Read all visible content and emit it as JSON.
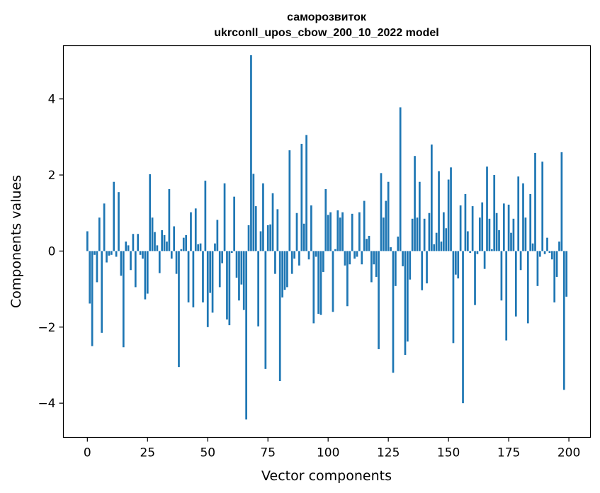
{
  "chart_data": {
    "type": "bar",
    "title": [
      "саморозвиток",
      "ukrconll_upos_cbow_200_10_2022 model"
    ],
    "xlabel": "Vector components",
    "ylabel": "Components values",
    "xlim": [
      -9.95,
      208.95
    ],
    "ylim": [
      -4.9,
      5.4
    ],
    "xticks": [
      0,
      25,
      50,
      75,
      100,
      125,
      150,
      175,
      200
    ],
    "xtick_labels": [
      "0",
      "25",
      "50",
      "75",
      "100",
      "125",
      "150",
      "175",
      "200"
    ],
    "yticks": [
      -4,
      -2,
      0,
      2,
      4
    ],
    "ytick_labels": [
      "−4",
      "−2",
      "0",
      "2",
      "4"
    ],
    "bar_color": "#1f77b4",
    "grid": false,
    "x": [
      0,
      1,
      2,
      3,
      4,
      5,
      6,
      7,
      8,
      9,
      10,
      11,
      12,
      13,
      14,
      15,
      16,
      17,
      18,
      19,
      20,
      21,
      22,
      23,
      24,
      25,
      26,
      27,
      28,
      29,
      30,
      31,
      32,
      33,
      34,
      35,
      36,
      37,
      38,
      39,
      40,
      41,
      42,
      43,
      44,
      45,
      46,
      47,
      48,
      49,
      50,
      51,
      52,
      53,
      54,
      55,
      56,
      57,
      58,
      59,
      60,
      61,
      62,
      63,
      64,
      65,
      66,
      67,
      68,
      69,
      70,
      71,
      72,
      73,
      74,
      75,
      76,
      77,
      78,
      79,
      80,
      81,
      82,
      83,
      84,
      85,
      86,
      87,
      88,
      89,
      90,
      91,
      92,
      93,
      94,
      95,
      96,
      97,
      98,
      99,
      100,
      101,
      102,
      103,
      104,
      105,
      106,
      107,
      108,
      109,
      110,
      111,
      112,
      113,
      114,
      115,
      116,
      117,
      118,
      119,
      120,
      121,
      122,
      123,
      124,
      125,
      126,
      127,
      128,
      129,
      130,
      131,
      132,
      133,
      134,
      135,
      136,
      137,
      138,
      139,
      140,
      141,
      142,
      143,
      144,
      145,
      146,
      147,
      148,
      149,
      150,
      151,
      152,
      153,
      154,
      155,
      156,
      157,
      158,
      159,
      160,
      161,
      162,
      163,
      164,
      165,
      166,
      167,
      168,
      169,
      170,
      171,
      172,
      173,
      174,
      175,
      176,
      177,
      178,
      179,
      180,
      181,
      182,
      183,
      184,
      185,
      186,
      187,
      188,
      189,
      190,
      191,
      192,
      193,
      194,
      195,
      196,
      197,
      198,
      199
    ],
    "values": [
      0.52,
      -1.38,
      -2.5,
      -0.1,
      -0.82,
      0.88,
      -2.15,
      1.25,
      -0.3,
      -0.12,
      -0.1,
      1.82,
      -0.15,
      1.55,
      -0.65,
      -2.53,
      0.25,
      0.15,
      -0.5,
      0.45,
      -0.95,
      0.45,
      -0.1,
      -0.2,
      -1.27,
      -1.12,
      2.02,
      0.88,
      0.5,
      0.15,
      -0.58,
      0.55,
      0.42,
      0.25,
      1.63,
      -0.2,
      0.65,
      -0.6,
      -3.05,
      0.05,
      0.35,
      0.42,
      -1.35,
      1.02,
      -1.48,
      1.12,
      0.18,
      0.2,
      -1.35,
      1.85,
      -2.0,
      -1.1,
      -1.62,
      0.2,
      0.82,
      -0.95,
      -0.32,
      1.78,
      -1.8,
      -1.95,
      -0.05,
      1.43,
      -0.7,
      -1.3,
      -0.88,
      -1.55,
      -4.43,
      0.68,
      5.15,
      2.03,
      1.18,
      -1.98,
      0.52,
      1.78,
      -3.1,
      0.68,
      0.7,
      1.52,
      -0.6,
      1.1,
      -3.42,
      -1.22,
      -1.02,
      -0.95,
      2.65,
      -0.6,
      -0.2,
      1.0,
      -0.38,
      2.82,
      0.72,
      3.05,
      -0.22,
      1.2,
      -1.9,
      -0.15,
      -1.65,
      -1.68,
      -0.55,
      1.63,
      0.95,
      1.02,
      -1.6,
      0.05,
      1.07,
      0.88,
      1.02,
      -0.38,
      -1.45,
      -0.35,
      0.98,
      -0.2,
      -0.15,
      1.02,
      -0.35,
      1.32,
      0.32,
      0.4,
      -0.82,
      -0.35,
      -0.68,
      -2.58,
      2.05,
      0.88,
      1.32,
      1.82,
      0.1,
      -3.2,
      -0.92,
      0.38,
      3.78,
      -0.4,
      -2.73,
      -2.38,
      -0.75,
      0.85,
      2.5,
      0.88,
      1.82,
      -1.03,
      0.85,
      -0.85,
      1.0,
      2.8,
      0.18,
      0.48,
      2.1,
      0.25,
      1.02,
      0.6,
      1.88,
      2.2,
      -2.42,
      -0.62,
      -0.72,
      1.2,
      -4.0,
      1.5,
      0.52,
      -0.05,
      1.18,
      -1.42,
      -0.08,
      0.88,
      1.28,
      -0.47,
      2.22,
      0.85,
      0.05,
      2.0,
      1.0,
      0.55,
      -1.3,
      1.25,
      -2.35,
      1.22,
      0.48,
      0.85,
      -1.72,
      1.96,
      -0.5,
      1.78,
      0.88,
      -1.9,
      1.5,
      0.2,
      2.58,
      -0.92,
      -0.15,
      2.35,
      -0.08,
      0.35,
      -0.05,
      -0.22,
      -1.35,
      -0.68,
      0.25,
      2.6,
      -3.65,
      -1.2
    ]
  }
}
